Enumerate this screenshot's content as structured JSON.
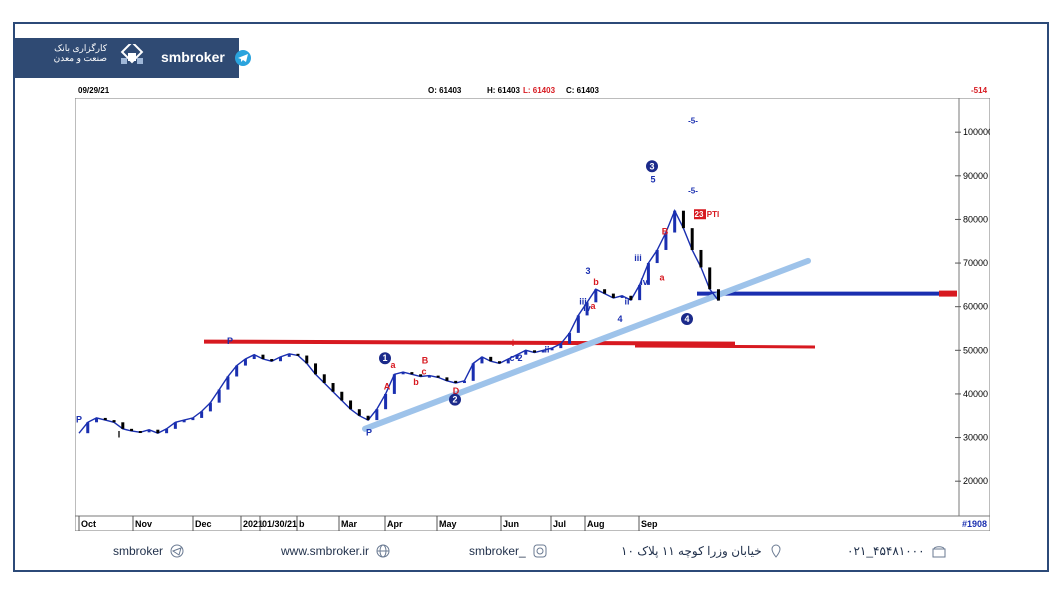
{
  "brand": {
    "logo_text_line1": "کارگزاری بانک",
    "logo_text_line2": "صنعت و معدن",
    "channel_name": "smbroker"
  },
  "header": {
    "date": "09/29/21",
    "open": "O: 61403",
    "high": "H: 61403",
    "low": "L: 61403",
    "close": "C: 61403",
    "change": "-514"
  },
  "colors": {
    "candle_up": "#1a2fb0",
    "candle_down": "#000000",
    "support_red": "#d71920",
    "trend_blue": "#9ec3ea",
    "level_blue": "#1a2fb0",
    "wave_blue": "#1a2fb0",
    "label_red": "#d71920",
    "frame": "#2c4a78"
  },
  "chart_data": {
    "type": "line",
    "x_ticks": [
      "Oct",
      "Nov",
      "Dec",
      "2021",
      "01/30/21",
      "b",
      "Mar",
      "Apr",
      "May",
      "Jun",
      "Jul",
      "Aug",
      "Sep"
    ],
    "y_ticks": [
      "100000",
      "90000",
      "80000",
      "70000",
      "60000",
      "50000",
      "40000",
      "30000",
      "20000"
    ],
    "ylim": [
      15000,
      106000
    ],
    "y_corner_label": "#1908",
    "last_price_tag": "61403",
    "series": [
      {
        "values": [
          [
            0,
            31000
          ],
          [
            3,
            33500
          ],
          [
            6,
            34500
          ],
          [
            9,
            34000
          ],
          [
            12,
            33500
          ],
          [
            15,
            32000
          ],
          [
            18,
            31500
          ],
          [
            21,
            31200
          ],
          [
            24,
            31800
          ],
          [
            27,
            31000
          ],
          [
            30,
            32000
          ],
          [
            33,
            33500
          ],
          [
            36,
            34000
          ],
          [
            39,
            34500
          ],
          [
            42,
            36000
          ],
          [
            45,
            38000
          ],
          [
            48,
            41000
          ],
          [
            51,
            44000
          ],
          [
            54,
            46500
          ],
          [
            57,
            48000
          ],
          [
            60,
            49000
          ],
          [
            63,
            48000
          ],
          [
            66,
            47500
          ],
          [
            69,
            48500
          ],
          [
            72,
            49200
          ],
          [
            75,
            48800
          ],
          [
            78,
            47000
          ],
          [
            81,
            44500
          ],
          [
            84,
            42500
          ],
          [
            87,
            40500
          ],
          [
            90,
            38500
          ],
          [
            93,
            36500
          ],
          [
            96,
            35000
          ],
          [
            99,
            34000
          ],
          [
            102,
            36500
          ],
          [
            105,
            40000
          ],
          [
            108,
            44500
          ],
          [
            111,
            45000
          ],
          [
            114,
            44500
          ],
          [
            117,
            44000
          ],
          [
            120,
            44200
          ],
          [
            123,
            43800
          ],
          [
            126,
            43000
          ],
          [
            129,
            42500
          ],
          [
            132,
            43000
          ],
          [
            135,
            47000
          ],
          [
            138,
            48500
          ],
          [
            141,
            47500
          ],
          [
            144,
            47000
          ],
          [
            147,
            48000
          ],
          [
            150,
            49000
          ],
          [
            153,
            50000
          ],
          [
            156,
            49500
          ],
          [
            159,
            50000
          ],
          [
            162,
            50500
          ],
          [
            165,
            51500
          ],
          [
            168,
            54000
          ],
          [
            171,
            58000
          ],
          [
            174,
            61000
          ],
          [
            177,
            64000
          ],
          [
            180,
            63000
          ],
          [
            183,
            62000
          ],
          [
            186,
            62500
          ],
          [
            189,
            61500
          ],
          [
            192,
            65000
          ],
          [
            195,
            70000
          ],
          [
            198,
            73000
          ],
          [
            201,
            77000
          ],
          [
            204,
            82000
          ],
          [
            207,
            78000
          ],
          [
            210,
            73000
          ],
          [
            213,
            69000
          ],
          [
            216,
            64000
          ],
          [
            219,
            61403
          ]
        ]
      }
    ],
    "wave_labels": [
      "P",
      "I",
      "P",
      "P",
      "1",
      "A",
      "a",
      "b",
      "B",
      "c",
      "D",
      "2",
      "i",
      "ii",
      "c",
      "2",
      "iii",
      "3",
      "b",
      "iv",
      "4",
      "a",
      "iii",
      "iv",
      "ii",
      "3",
      "5",
      "a",
      "B",
      "4"
    ],
    "annotations": [
      "-5-",
      "-5-",
      "23",
      "PTI"
    ],
    "lines": {
      "resistance_red": 52000,
      "lower_red": 51000,
      "current_blue": 63000
    }
  },
  "footer": {
    "telegram": "smbroker",
    "website": "www.smbroker.ir",
    "instagram": "smbroker_",
    "address": "خیابان وزرا کوچه ۱۱ پلاک ۱۰",
    "phone": "۰۲۱_۴۵۴۸۱۰۰۰"
  }
}
